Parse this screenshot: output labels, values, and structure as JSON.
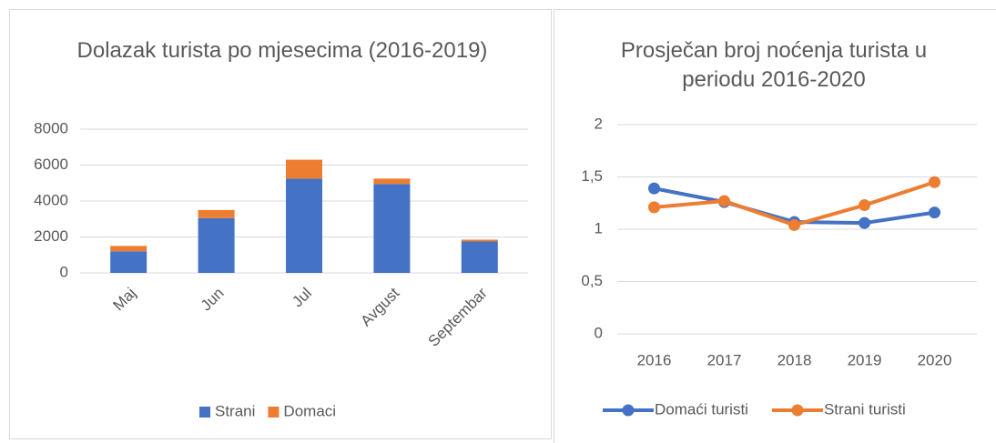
{
  "chart_data": [
    {
      "type": "stacked_bar",
      "title": "Dolazak turista po mjesecima (2016-2019)",
      "categories": [
        "Maj",
        "Jun",
        "Jul",
        "Avgust",
        "Septembar"
      ],
      "series": [
        {
          "name": "Strani",
          "color": "#4472c4",
          "values": [
            1200,
            3050,
            5250,
            4950,
            1750
          ]
        },
        {
          "name": "Domaci",
          "color": "#ed7d31",
          "values": [
            300,
            450,
            1050,
            300,
            100
          ]
        }
      ],
      "ylim": [
        0,
        8000
      ],
      "yticks": [
        0,
        2000,
        4000,
        6000,
        8000
      ],
      "grid": true,
      "legend": "bottom"
    },
    {
      "type": "line",
      "title": "Prosječan broj noćenja turista u periodu 2016-2020",
      "categories": [
        "2016",
        "2017",
        "2018",
        "2019",
        "2020"
      ],
      "series": [
        {
          "name": "Domaći turisti",
          "color": "#4472c4",
          "values": [
            1.39,
            1.26,
            1.07,
            1.06,
            1.16
          ]
        },
        {
          "name": "Strani turisti",
          "color": "#ed7d31",
          "values": [
            1.21,
            1.27,
            1.04,
            1.23,
            1.45
          ]
        }
      ],
      "ylim": [
        0,
        2
      ],
      "yticks": [
        0,
        {
          "value": 0.5,
          "label": "0,5"
        },
        1,
        {
          "value": 1.5,
          "label": "1,5"
        },
        2
      ],
      "grid": true,
      "legend": "bottom"
    }
  ]
}
